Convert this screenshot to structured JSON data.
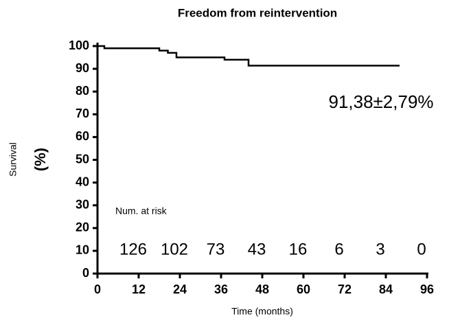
{
  "chart_data": {
    "type": "step",
    "title": "Freedom from reintervention",
    "ylabel": "Survival",
    "ylabel_unit": "(%)",
    "xlabel": "Time (months)",
    "annotation": "91,38±2,79%",
    "x": [
      0,
      2,
      18,
      20.5,
      23,
      37,
      44,
      88
    ],
    "values": [
      100,
      99,
      98,
      97,
      95,
      94,
      91.38,
      91.38
    ],
    "color": "#000000",
    "xlim": [
      0,
      96
    ],
    "xticks": [
      0,
      12,
      24,
      36,
      48,
      60,
      72,
      84,
      96
    ],
    "ylim": [
      0,
      100
    ],
    "yticks": [
      0,
      10,
      20,
      30,
      40,
      50,
      60,
      70,
      80,
      90,
      100
    ],
    "risk_title": "Num. at risk",
    "risk_times": [
      12,
      24,
      36,
      48,
      60,
      72,
      84,
      96
    ],
    "at_risk": [
      126,
      102,
      73,
      43,
      16,
      6,
      3,
      0
    ]
  }
}
